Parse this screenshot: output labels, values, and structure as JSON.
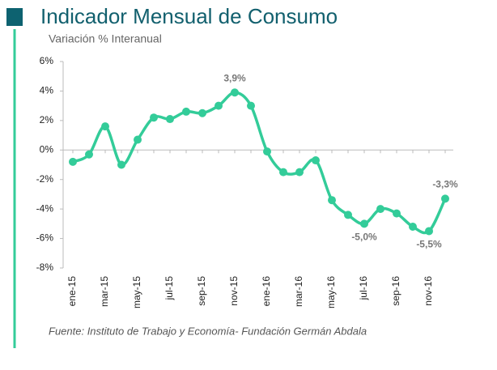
{
  "chart_data": {
    "type": "line",
    "title": "Indicador Mensual de Consumo",
    "subtitle": "Variación % Interanual",
    "source": "Fuente: Instituto de Trabajo y Economía- Fundación Germán Abdala",
    "categories": [
      "ene-15",
      null,
      "mar-15",
      null,
      "may-15",
      null,
      "jul-15",
      null,
      "sep-15",
      null,
      "nov-15",
      null,
      "ene-16",
      null,
      "mar-16",
      null,
      "may-16",
      null,
      "jul-16",
      null,
      "sep-16",
      null,
      "nov-16",
      null
    ],
    "series": [
      {
        "color": "#33cc99",
        "values": [
          -0.8,
          -0.3,
          1.6,
          -1.0,
          0.7,
          2.2,
          2.1,
          2.6,
          2.5,
          3.0,
          3.9,
          3.0,
          -0.1,
          -1.5,
          -1.5,
          -0.7,
          -3.4,
          -4.4,
          -5.0,
          -4.0,
          -4.3,
          -5.2,
          -5.5,
          -3.3
        ],
        "value_labels": [
          null,
          null,
          null,
          null,
          null,
          null,
          null,
          null,
          null,
          null,
          "3,9%",
          null,
          null,
          null,
          null,
          null,
          null,
          null,
          "-5,0%",
          null,
          null,
          null,
          "-5,5%",
          "-3,3%"
        ]
      }
    ],
    "ylim": [
      -8,
      6
    ],
    "yticks": [
      {
        "value": -8,
        "label": "-8%"
      },
      {
        "value": -6,
        "label": "-6%"
      },
      {
        "value": -4,
        "label": "-4%"
      },
      {
        "value": -2,
        "label": "-2%"
      },
      {
        "value": 0,
        "label": "0%"
      },
      {
        "value": 2,
        "label": "2%"
      },
      {
        "value": 4,
        "label": "4%"
      },
      {
        "value": 6,
        "label": "6%"
      }
    ],
    "grid": false
  }
}
